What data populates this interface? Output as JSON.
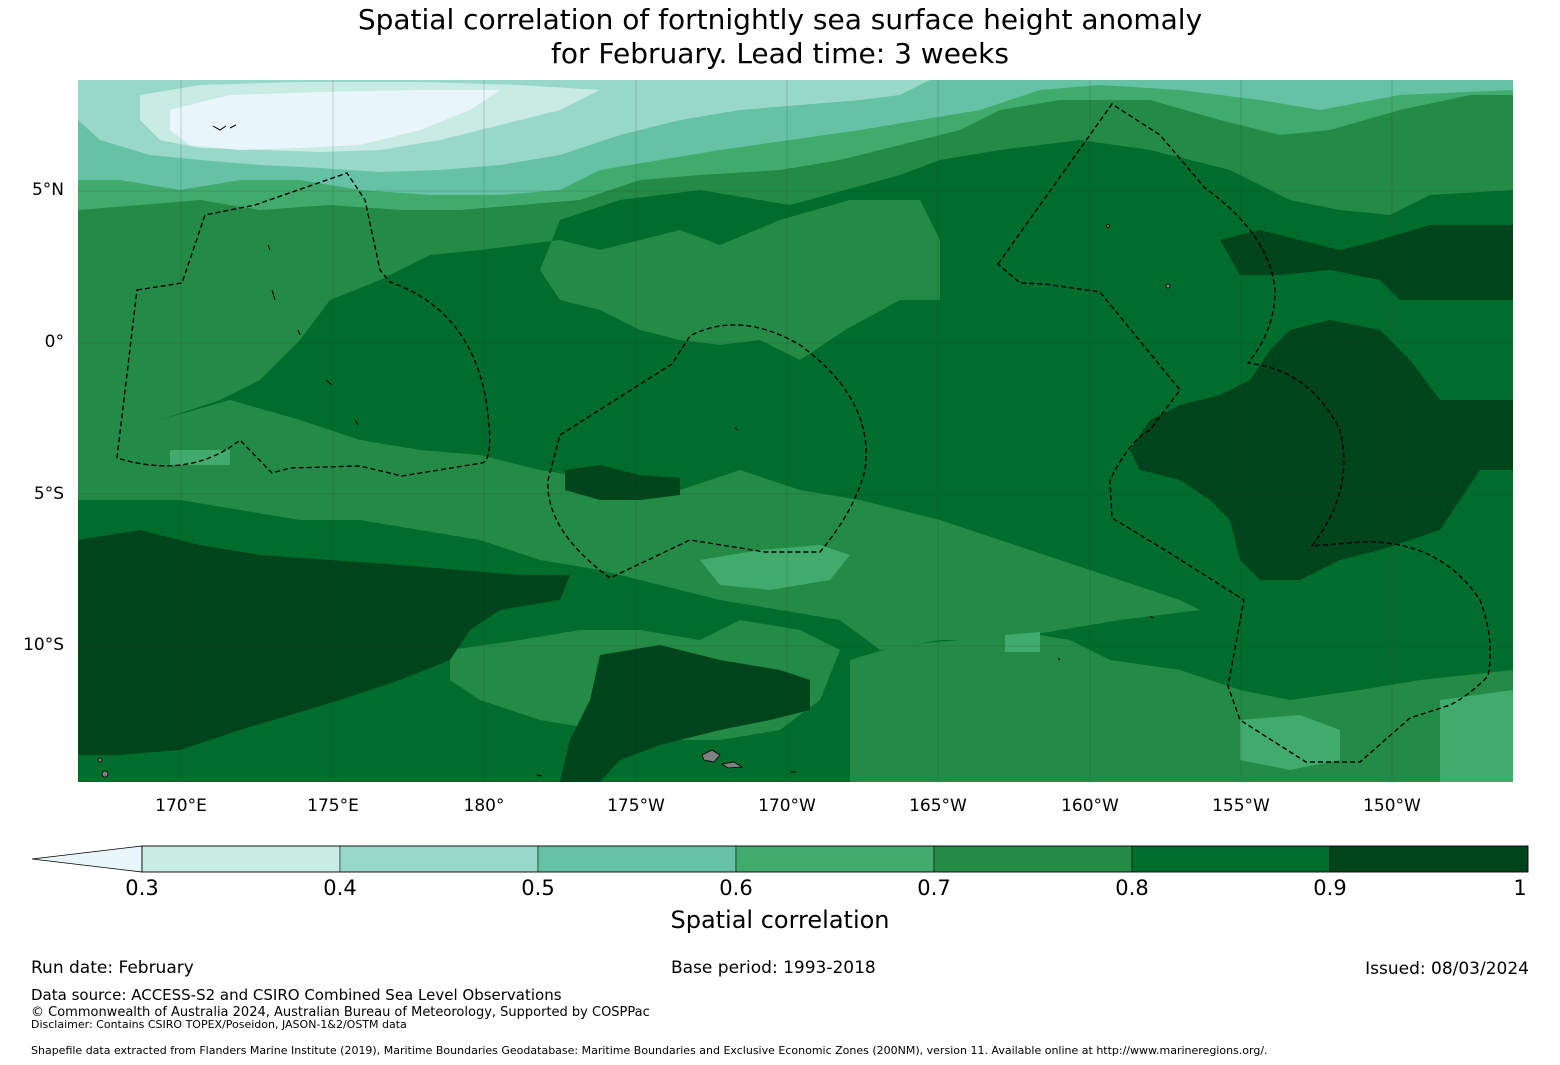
{
  "title": {
    "line1": "Spatial correlation of fortnightly sea surface height anomaly",
    "line2": "for February. Lead time: 3 weeks"
  },
  "axes": {
    "lat_ticks": [
      "5°N",
      "0°",
      "5°S",
      "10°S"
    ],
    "lon_ticks": [
      "170°E",
      "175°E",
      "180°",
      "175°W",
      "170°W",
      "165°W",
      "160°W",
      "155°W",
      "150°W"
    ]
  },
  "colorbar": {
    "label": "Spatial correlation",
    "ticks": [
      "0.3",
      "0.4",
      "0.5",
      "0.6",
      "0.7",
      "0.8",
      "0.9",
      "1"
    ],
    "colors": [
      "#c8ebe4",
      "#98d8c9",
      "#66c2a5",
      "#41ab6e",
      "#248b47",
      "#006d2c",
      "#00441b"
    ],
    "extend_color": "#e8f5fa"
  },
  "footer": {
    "run_date": "Run date: February",
    "base_period": "Base period: 1993-2018",
    "issued": "Issued: 08/03/2024",
    "data_source": "Data source: ACCESS-S2 and CSIRO Combined Sea Level Observations",
    "copyright": "© Commonwealth of Australia 2024, Australian Bureau of Meteorology, Supported by COSPPac",
    "disclaimer": "Disclaimer: Contains CSIRO TOPEX/Poseidon, JASON-1&2/OSTM data",
    "shapefile": "Shapefile data extracted from Flanders Marine Institute (2019), Maritime Boundaries Geodatabase: Maritime Boundaries and Exclusive Economic Zones (200NM), version 11. Available online at http://www.marineregions.org/."
  }
}
